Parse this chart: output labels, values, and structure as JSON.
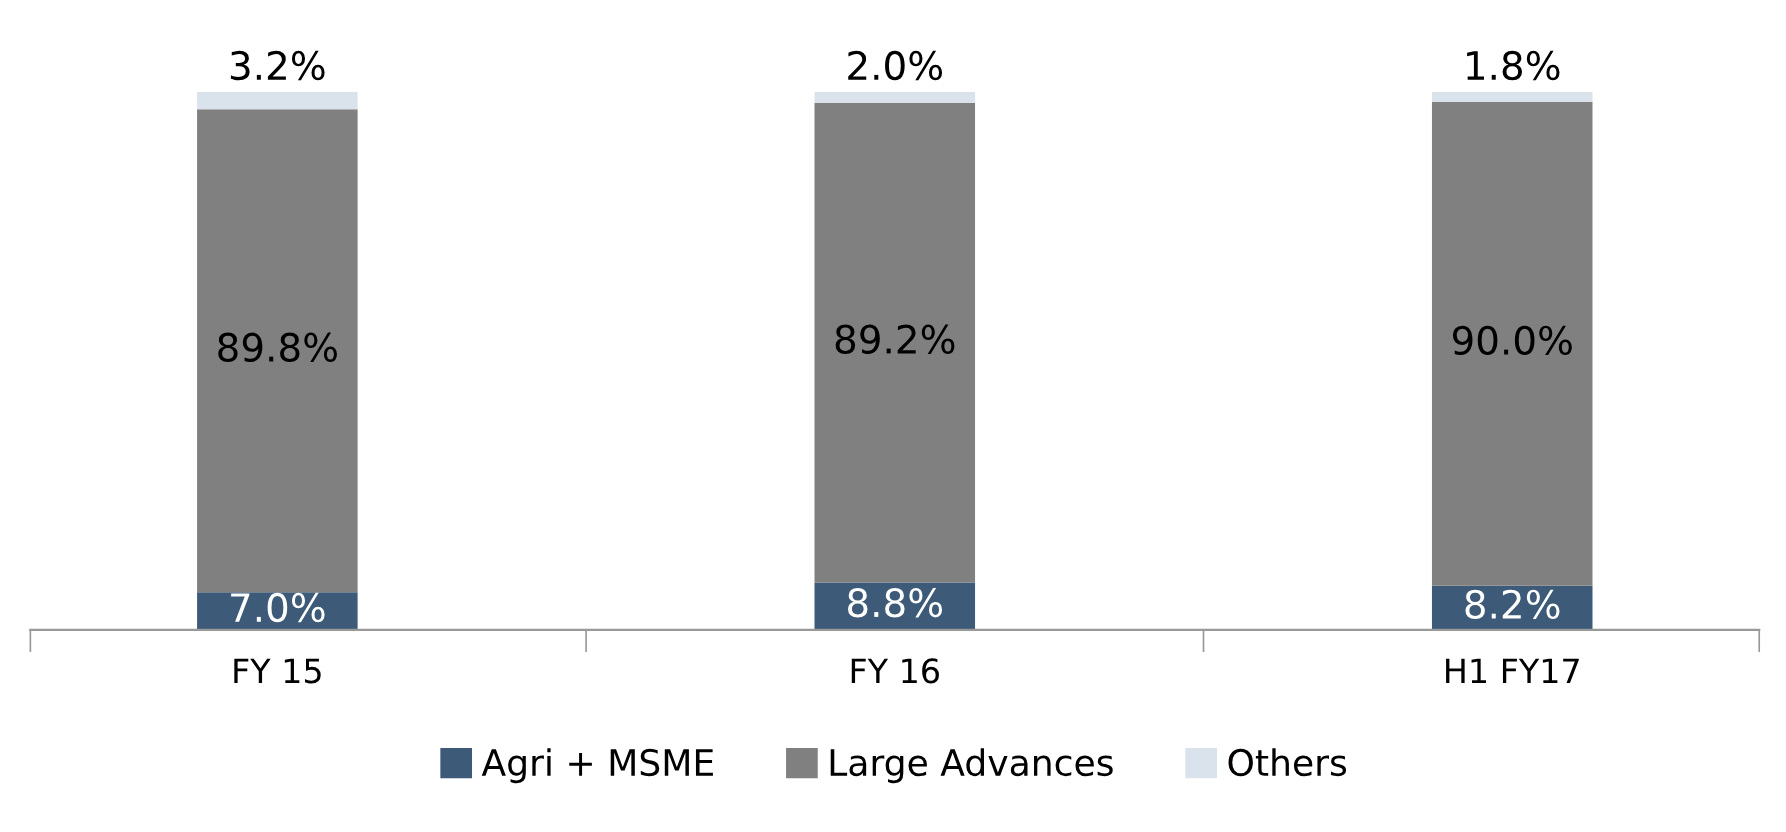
{
  "chart_data": {
    "type": "bar",
    "stacked": true,
    "categories": [
      "FY 15",
      "FY 16",
      "H1 FY17"
    ],
    "series": [
      {
        "name": "Agri + MSME",
        "color": "#3d5a78",
        "values": [
          7.0,
          8.8,
          8.2
        ],
        "value_labels": [
          "7.0%",
          "8.8%",
          "8.2%"
        ]
      },
      {
        "name": "Large Advances",
        "color": "#808080",
        "values": [
          89.8,
          89.2,
          90.0
        ],
        "value_labels": [
          "89.8%",
          "89.2%",
          "90.0%"
        ]
      },
      {
        "name": "Others",
        "color": "#dae3ec",
        "values": [
          3.2,
          2.0,
          1.8
        ],
        "value_labels": [
          "3.2%",
          "2.0%",
          "1.8%"
        ]
      }
    ],
    "tick_labels": "x",
    "legend": "bottom"
  }
}
